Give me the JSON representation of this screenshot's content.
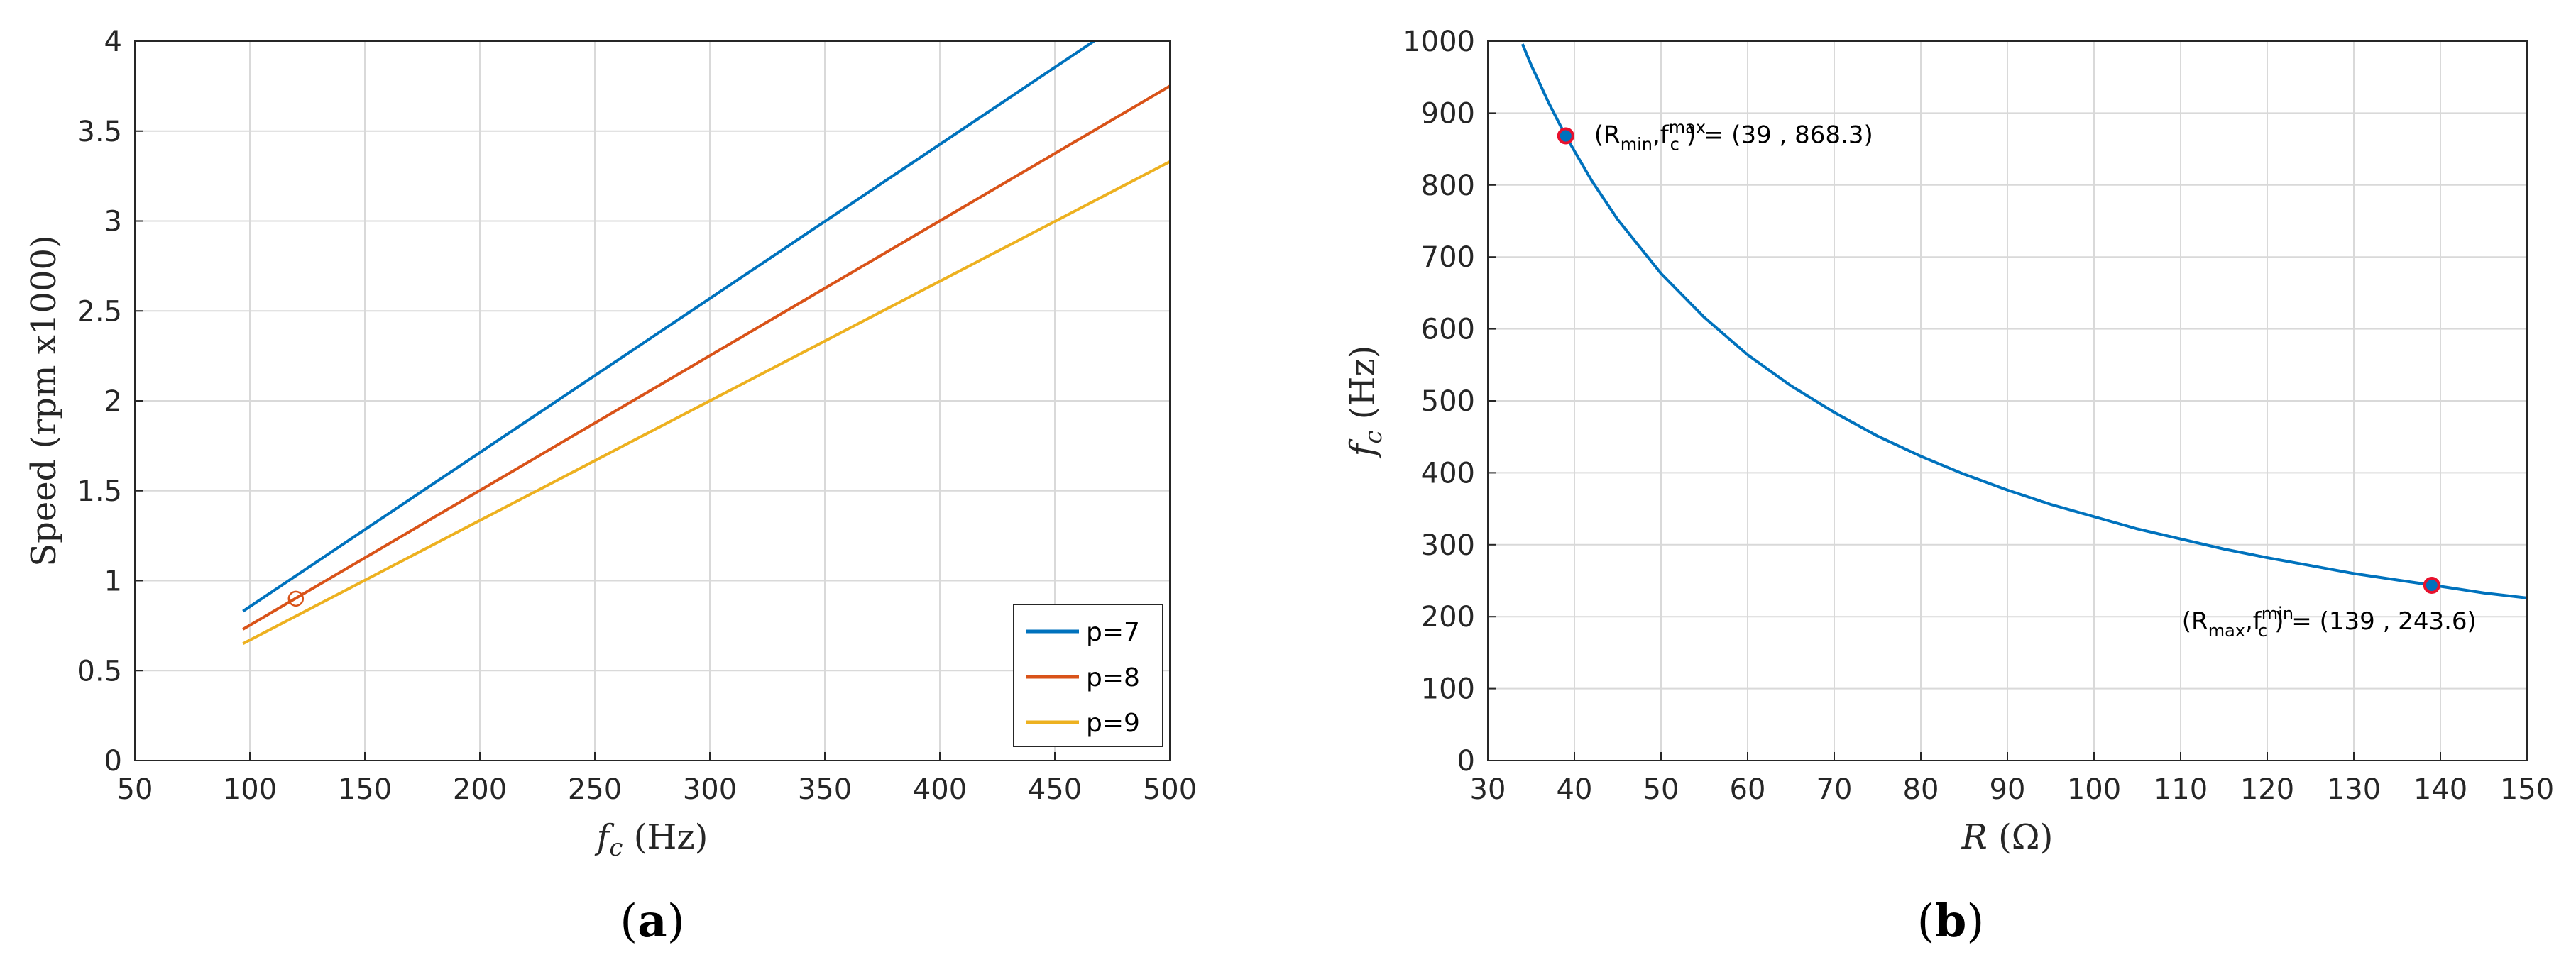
{
  "chart_data": [
    {
      "type": "line",
      "panel_label": "a",
      "xlabel": {
        "var": "f",
        "sub": "c",
        "unit": "(Hz)"
      },
      "ylabel": "Speed (rpm x1000)",
      "xlim": [
        50,
        500
      ],
      "ylim": [
        0,
        4
      ],
      "xticks": [
        50,
        100,
        150,
        200,
        250,
        300,
        350,
        400,
        450,
        500
      ],
      "yticks": [
        0,
        0.5,
        1,
        1.5,
        2,
        2.5,
        3,
        3.5,
        4
      ],
      "ytick_labels": [
        "0",
        "0.5",
        "1",
        "1.5",
        "2",
        "2.5",
        "3",
        "3.5",
        "4"
      ],
      "grid": true,
      "legend_position": "bottom-right",
      "series": [
        {
          "name": "p=7",
          "color": "#0072BD",
          "x": [
            97,
            467
          ],
          "y": [
            0.83,
            4.0
          ]
        },
        {
          "name": "p=8",
          "color": "#D95319",
          "x": [
            97,
            500
          ],
          "y": [
            0.73,
            3.75
          ]
        },
        {
          "name": "p=9",
          "color": "#EDB120",
          "x": [
            97,
            500
          ],
          "y": [
            0.65,
            3.33
          ]
        }
      ],
      "markers": [
        {
          "x": 120,
          "y": 0.9,
          "color": "#D95319"
        }
      ]
    },
    {
      "type": "line",
      "panel_label": "b",
      "xlabel": {
        "var": "R",
        "unit": "(Ω)"
      },
      "ylabel": {
        "var": "f",
        "sub": "c",
        "unit": "(Hz)"
      },
      "xlim": [
        30,
        150
      ],
      "ylim": [
        0,
        1000
      ],
      "xticks": [
        30,
        40,
        50,
        60,
        70,
        80,
        90,
        100,
        110,
        120,
        130,
        140,
        150
      ],
      "yticks": [
        0,
        100,
        200,
        300,
        400,
        500,
        600,
        700,
        800,
        900,
        1000
      ],
      "grid": true,
      "series": [
        {
          "color": "#0072BD",
          "x": [
            34,
            35,
            37,
            39,
            42,
            45,
            50,
            55,
            60,
            65,
            70,
            75,
            80,
            85,
            90,
            95,
            100,
            105,
            110,
            115,
            120,
            125,
            130,
            135,
            139,
            145,
            150
          ],
          "y": [
            996,
            967,
            915,
            868,
            806,
            752,
            677,
            616,
            564,
            521,
            484,
            451,
            423,
            398,
            376,
            356,
            339,
            322,
            308,
            294,
            282,
            271,
            260,
            251,
            244,
            233,
            226
          ]
        }
      ],
      "points": [
        {
          "x": 39,
          "y": 868.3,
          "text": {
            "pre": "(R",
            "s1": "min",
            "mid": ",f",
            "s2sup": "max",
            "s2sub": "c",
            "post": ") = (39 , 868.3)"
          }
        },
        {
          "x": 139,
          "y": 243.6,
          "text": {
            "pre": "(R",
            "s1": "max",
            "mid": ",f",
            "s2sup": "min",
            "s2sub": "c",
            "post": ") = (139 , 243.6)"
          }
        }
      ]
    }
  ]
}
